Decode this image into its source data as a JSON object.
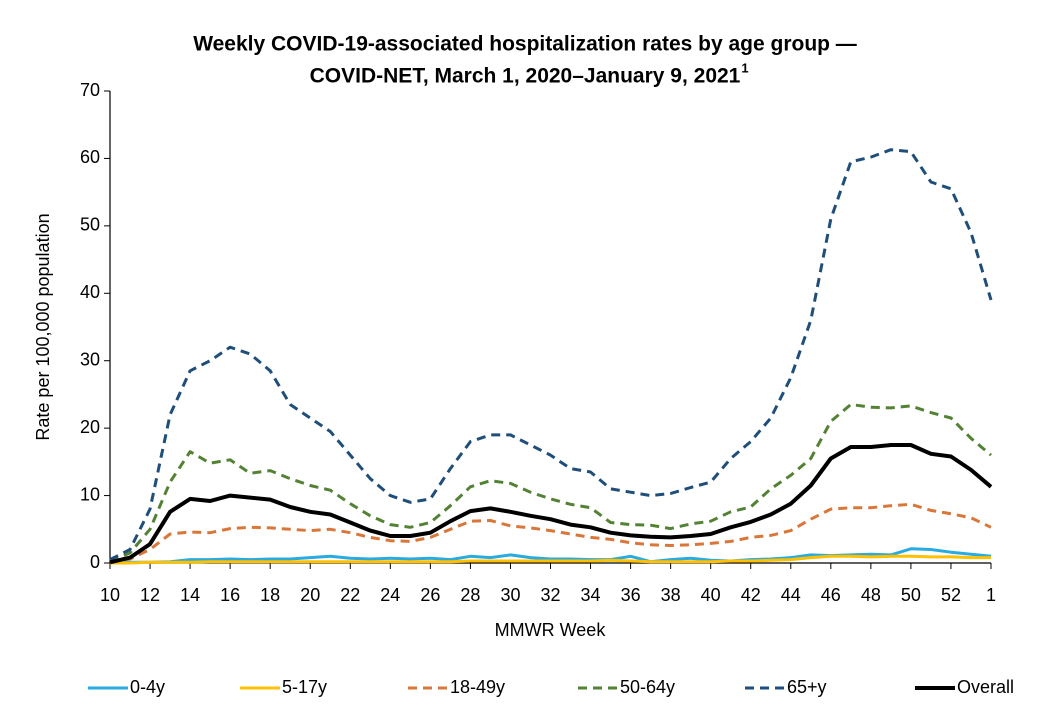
{
  "chart_data": {
    "type": "line",
    "title": [
      "Weekly COVID-19-associated hospitalization rates by age group —",
      "COVID-NET, March 1, 2020–January 9, 2021"
    ],
    "title_footnote": "1",
    "x_label": "MMWR Week",
    "y_label": "Rate per 100,000 population",
    "categories": [
      10,
      null,
      12,
      null,
      14,
      null,
      16,
      null,
      18,
      null,
      20,
      null,
      22,
      null,
      24,
      null,
      26,
      null,
      28,
      null,
      30,
      null,
      32,
      null,
      34,
      null,
      36,
      null,
      38,
      null,
      40,
      null,
      42,
      null,
      44,
      null,
      46,
      null,
      48,
      null,
      50,
      null,
      52,
      null,
      1
    ],
    "ylim": [
      0,
      70
    ],
    "yticks": [
      0,
      10,
      20,
      30,
      40,
      50,
      60,
      70
    ],
    "series": [
      {
        "name": "0-4y",
        "color": "#29abe2",
        "dashed": false,
        "values": [
          0,
          0.1,
          0.1,
          0.2,
          0.5,
          0.5,
          0.6,
          0.5,
          0.6,
          0.6,
          0.8,
          1,
          0.7,
          0.6,
          0.7,
          0.6,
          0.7,
          0.5,
          1,
          0.8,
          1.2,
          0.8,
          0.6,
          0.6,
          0.5,
          0.5,
          1,
          0.2,
          0.5,
          0.7,
          0.4,
          0.3,
          0.5,
          0.6,
          0.8,
          1.2,
          1.1,
          1.2,
          1.3,
          1.2,
          2.1,
          2,
          1.6,
          1.3,
          1
        ]
      },
      {
        "name": "5-17y",
        "color": "#ffc000",
        "dashed": false,
        "values": [
          0,
          0,
          0.1,
          0.1,
          0.1,
          0.2,
          0.2,
          0.2,
          0.2,
          0.2,
          0.2,
          0.2,
          0.2,
          0.2,
          0.2,
          0.2,
          0.2,
          0.2,
          0.3,
          0.3,
          0.3,
          0.3,
          0.3,
          0.3,
          0.3,
          0.4,
          0.3,
          0.2,
          0.2,
          0.2,
          0.2,
          0.3,
          0.3,
          0.4,
          0.5,
          0.8,
          1,
          1,
          0.9,
          1,
          1,
          0.9,
          0.9,
          0.8,
          0.8
        ]
      },
      {
        "name": "18-49y",
        "color": "#d9773a",
        "dashed": true,
        "values": [
          0.2,
          0.6,
          2,
          4.3,
          4.6,
          4.5,
          5.1,
          5.3,
          5.2,
          5,
          4.8,
          5,
          4.5,
          3.8,
          3.3,
          3.2,
          3.8,
          5,
          6.2,
          6.3,
          5.5,
          5.2,
          4.8,
          4.3,
          3.8,
          3.5,
          3,
          2.7,
          2.6,
          2.7,
          2.9,
          3.2,
          3.8,
          4.1,
          4.8,
          6.5,
          8,
          8.2,
          8.2,
          8.5,
          8.7,
          7.8,
          7.3,
          6.7,
          5.3
        ]
      },
      {
        "name": "50-64y",
        "color": "#548235",
        "dashed": true,
        "values": [
          0.3,
          1.5,
          5,
          12,
          16.5,
          14.8,
          15.3,
          13.3,
          13.7,
          12.5,
          11.5,
          10.8,
          8.8,
          7,
          5.7,
          5.3,
          6,
          8.5,
          11.3,
          12.2,
          11.8,
          10.5,
          9.5,
          8.7,
          8.2,
          6,
          5.7,
          5.6,
          5.1,
          5.8,
          6.2,
          7.6,
          8.3,
          11,
          13,
          15.5,
          21,
          23.5,
          23.1,
          23,
          23.3,
          22.3,
          21.5,
          18.5,
          16
        ]
      },
      {
        "name": "65+y",
        "color": "#1f4e79",
        "dashed": true,
        "values": [
          0.5,
          2,
          8,
          22,
          28.5,
          30,
          32,
          31,
          28.5,
          23.5,
          21.5,
          19.5,
          16,
          12.5,
          10,
          9,
          9.5,
          14,
          18,
          19,
          19,
          17.5,
          16,
          14,
          13.5,
          11,
          10.5,
          10,
          10.3,
          11.2,
          12,
          15.5,
          18,
          21.5,
          27.5,
          36,
          51,
          59.5,
          60.2,
          61.3,
          61,
          56.5,
          55.5,
          49,
          39
        ]
      },
      {
        "name": "Overall",
        "color": "#000000",
        "dashed": false,
        "values": [
          0.1,
          0.8,
          2.8,
          7.6,
          9.5,
          9.2,
          10,
          9.7,
          9.4,
          8.3,
          7.6,
          7.2,
          6,
          4.8,
          4,
          4,
          4.5,
          6.2,
          7.7,
          8.1,
          7.6,
          7,
          6.5,
          5.7,
          5.3,
          4.5,
          4.1,
          3.9,
          3.8,
          4,
          4.3,
          5.3,
          6.1,
          7.2,
          8.8,
          11.5,
          15.5,
          17.2,
          17.2,
          17.5,
          17.5,
          16.2,
          15.8,
          13.8,
          11.3
        ]
      }
    ]
  }
}
